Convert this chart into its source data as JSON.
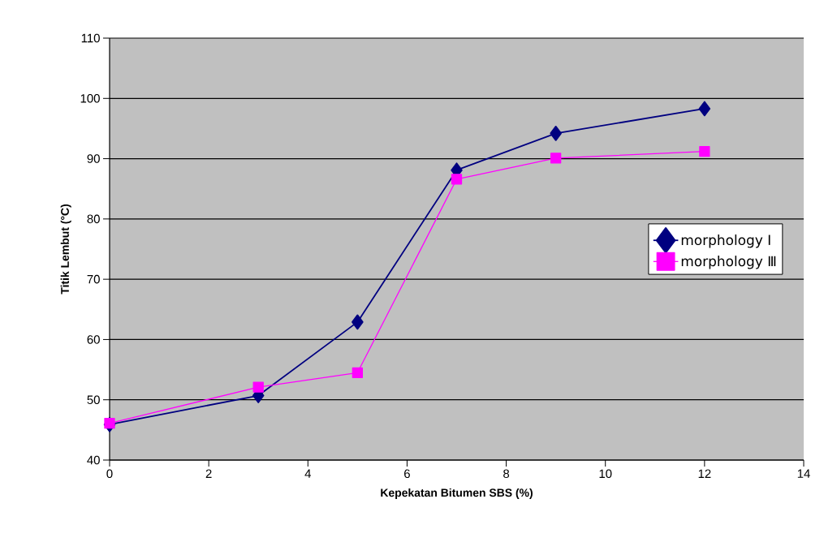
{
  "chart_data": {
    "type": "line",
    "xlabel": "Kepekatan Bitumen SBS (%)",
    "ylabel": "Titik Lembut (°C)",
    "x": [
      0,
      3,
      5,
      7,
      9,
      12
    ],
    "series": [
      {
        "name": "morphology Ⅰ",
        "color": "#000080",
        "marker": "diamond",
        "values": [
          45.9,
          50.7,
          62.9,
          88.1,
          94.2,
          98.3
        ]
      },
      {
        "name": "morphology Ⅲ",
        "color": "#ff00ff",
        "marker": "square",
        "values": [
          46.1,
          52.1,
          54.5,
          86.6,
          90.1,
          91.2
        ]
      }
    ],
    "xlim": [
      0,
      14
    ],
    "xticks": [
      0,
      2,
      4,
      6,
      8,
      10,
      12,
      14
    ],
    "ylim": [
      40,
      110
    ],
    "yticks": [
      40,
      50,
      60,
      70,
      80,
      90,
      100,
      110
    ],
    "grid": "y",
    "legend": "right",
    "line_style": "solid"
  }
}
